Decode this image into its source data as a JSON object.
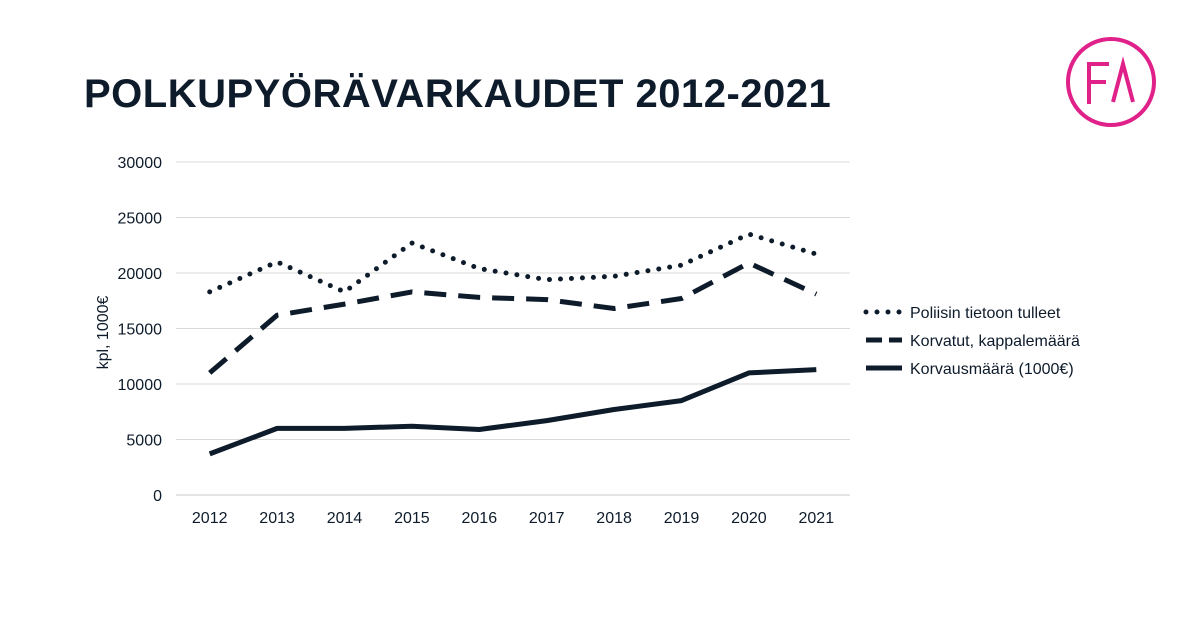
{
  "title": "POLKUPYÖRÄVARKAUDET 2012-2021",
  "logo": {
    "text": "FA",
    "color": "#e0218a",
    "icon": "fa-logo-icon"
  },
  "chart_data": {
    "type": "line",
    "title": "POLKUPYÖRÄVARKAUDET 2012-2021",
    "xlabel": "",
    "ylabel": "kpl, 1000€",
    "ylim": [
      0,
      30000
    ],
    "yticks": [
      0,
      5000,
      10000,
      15000,
      20000,
      25000,
      30000
    ],
    "grid": true,
    "legend_position": "right",
    "categories": [
      "2012",
      "2013",
      "2014",
      "2015",
      "2016",
      "2017",
      "2018",
      "2019",
      "2020",
      "2021"
    ],
    "series": [
      {
        "name": "Poliisin tietoon tulleet",
        "style": "dotted",
        "color": "#0d1b2a",
        "values": [
          18300,
          21000,
          18300,
          22700,
          20400,
          19400,
          19700,
          20700,
          23500,
          21700
        ]
      },
      {
        "name": "Korvatut, kappalemäärä",
        "style": "dashed",
        "color": "#0d1b2a",
        "values": [
          11000,
          16200,
          17200,
          18300,
          17800,
          17600,
          16800,
          17700,
          20900,
          18100
        ]
      },
      {
        "name": "Korvausmäärä (1000€)",
        "style": "solid",
        "color": "#0d1b2a",
        "values": [
          3700,
          6000,
          6000,
          6200,
          5900,
          6700,
          7700,
          8500,
          11000,
          11300
        ]
      }
    ]
  }
}
